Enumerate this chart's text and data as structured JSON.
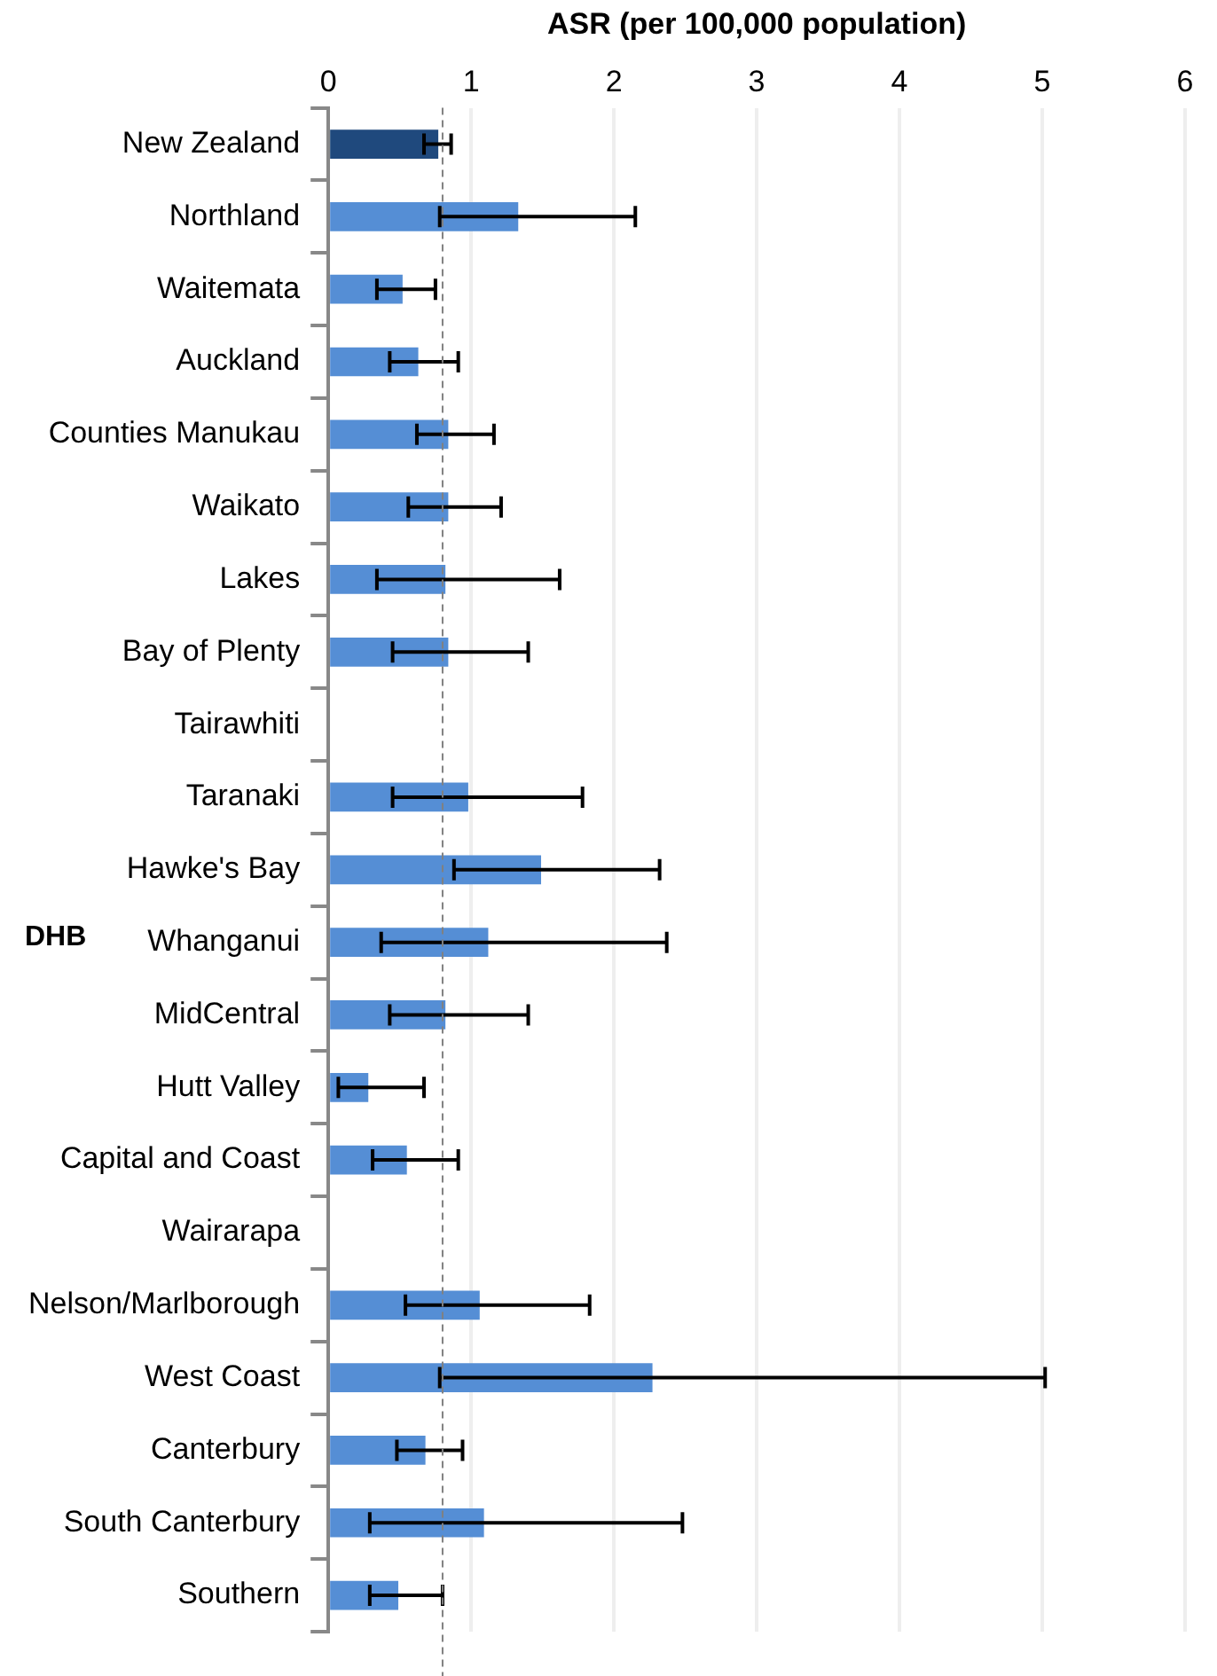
{
  "chart_data": {
    "type": "bar",
    "orientation": "horizontal",
    "xlabel": "ASR (per 100,000 population)",
    "ylabel": "DHB",
    "categories": [
      "New Zealand",
      "Northland",
      "Waitemata",
      "Auckland",
      "Counties Manukau",
      "Waikato",
      "Lakes",
      "Bay of Plenty",
      "Tairawhiti",
      "Taranaki",
      "Hawke's Bay",
      "Whanganui",
      "MidCentral",
      "Hutt Valley",
      "Capital and Coast",
      "Wairarapa",
      "Nelson/Marlborough",
      "West Coast",
      "Canterbury",
      "South Canterbury",
      "Southern"
    ],
    "values": [
      0.77,
      1.33,
      0.52,
      0.63,
      0.84,
      0.84,
      0.82,
      0.84,
      0,
      0.98,
      1.49,
      1.12,
      0.82,
      0.28,
      0.55,
      0,
      1.06,
      2.27,
      0.68,
      1.09,
      0.49
    ],
    "errors": [
      [
        0.67,
        0.86
      ],
      [
        0.78,
        2.15
      ],
      [
        0.34,
        0.75
      ],
      [
        0.43,
        0.91
      ],
      [
        0.62,
        1.16
      ],
      [
        0.56,
        1.21
      ],
      [
        0.34,
        1.62
      ],
      [
        0.45,
        1.4
      ],
      null,
      [
        0.45,
        1.78
      ],
      [
        0.88,
        2.32
      ],
      [
        0.37,
        2.37
      ],
      [
        0.43,
        1.4
      ],
      [
        0.07,
        0.67
      ],
      [
        0.31,
        0.91
      ],
      null,
      [
        0.54,
        1.83
      ],
      [
        0.78,
        5.02
      ],
      [
        0.48,
        0.94
      ],
      [
        0.29,
        2.48
      ],
      [
        0.29,
        0.8
      ]
    ],
    "colors": [
      "#1f497d",
      "#558ed5",
      "#558ed5",
      "#558ed5",
      "#558ed5",
      "#558ed5",
      "#558ed5",
      "#558ed5",
      "#558ed5",
      "#558ed5",
      "#558ed5",
      "#558ed5",
      "#558ed5",
      "#558ed5",
      "#558ed5",
      "#558ed5",
      "#558ed5",
      "#558ed5",
      "#558ed5",
      "#558ed5",
      "#558ed5"
    ],
    "xlim": [
      0,
      6
    ],
    "xticks": [
      0,
      1,
      2,
      3,
      4,
      5,
      6
    ],
    "grid": "x",
    "legend": false,
    "ref_lines": [
      {
        "axis": "x",
        "value": 0.8,
        "color": "#808080",
        "line_style": "dashed"
      }
    ]
  }
}
